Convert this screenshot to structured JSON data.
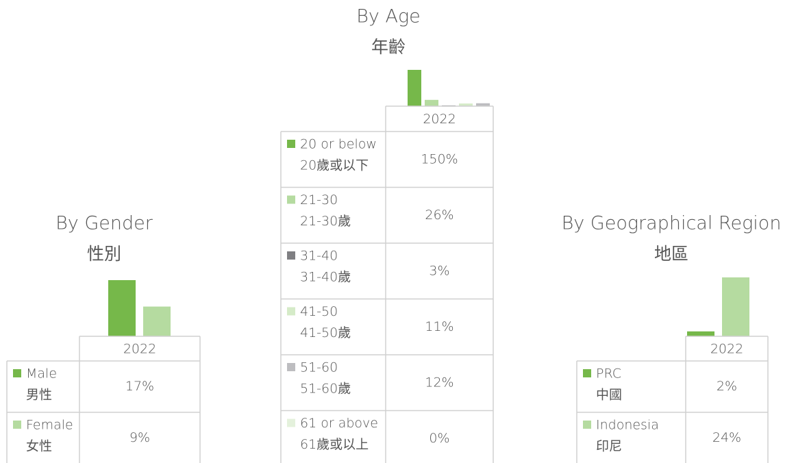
{
  "chart_data": [
    {
      "type": "bar",
      "title": "By Gender",
      "subtitle": "性別",
      "column": "2022",
      "categories": [
        "Male",
        "Female"
      ],
      "categories_zh": [
        "男性",
        "女性"
      ],
      "values": [
        17,
        9
      ],
      "value_labels": [
        "17%",
        "9%"
      ],
      "colors": [
        "#76b84a",
        "#b5dba0"
      ]
    },
    {
      "type": "bar",
      "title": "By Age",
      "subtitle": "年齡",
      "column": "2022",
      "categories": [
        "20 or below",
        "21-30",
        "31-40",
        "41-50",
        "51-60",
        "61 or above"
      ],
      "categories_zh": [
        "20歲或以下",
        "21-30歲",
        "31-40歲",
        "41-50歲",
        "51-60歲",
        "61歲或以上"
      ],
      "values": [
        150,
        26,
        3,
        11,
        12,
        0
      ],
      "value_labels": [
        "150%",
        "26%",
        "3%",
        "11%",
        "12%",
        "0%"
      ],
      "colors": [
        "#76b84a",
        "#b5dba0",
        "#7f7f82",
        "#d5ebc8",
        "#bdbdc0",
        "#e4f1dc"
      ]
    },
    {
      "type": "bar",
      "title": "By Geographical Region",
      "subtitle": "地區",
      "column": "2022",
      "categories": [
        "PRC",
        "Indonesia"
      ],
      "categories_zh": [
        "中國",
        "印尼"
      ],
      "values": [
        2,
        24
      ],
      "value_labels": [
        "2%",
        "24%"
      ],
      "colors": [
        "#76b84a",
        "#b5dba0"
      ]
    }
  ]
}
